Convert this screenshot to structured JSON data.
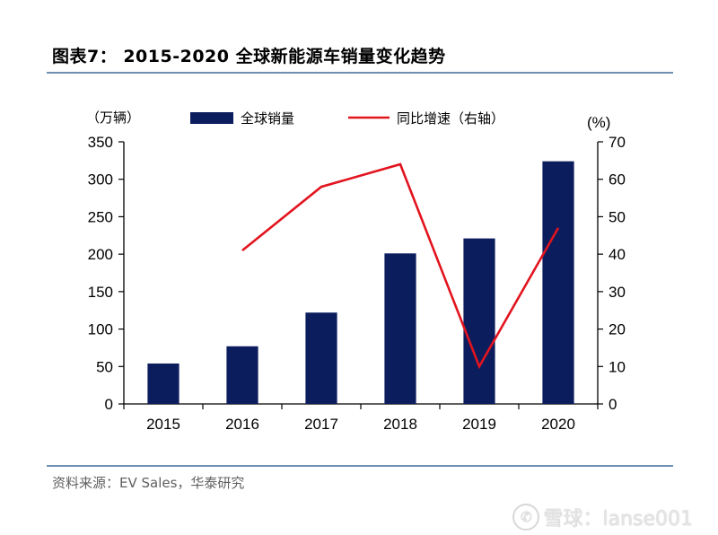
{
  "header": {
    "title": "图表7： 2015-2020 全球新能源车销量变化趋势"
  },
  "footer": {
    "source": "资料来源：EV Sales，华泰研究"
  },
  "watermark": {
    "text": "雪球：lanse001"
  },
  "colors": {
    "bar": "#0c1d5e",
    "line": "#e2141e",
    "rule": "#6f8fb0"
  },
  "chart_data": {
    "type": "bar",
    "title": "2015-2020 全球新能源车销量变化趋势",
    "categories": [
      "2015",
      "2016",
      "2017",
      "2018",
      "2019",
      "2020"
    ],
    "left_axis": {
      "unit_label": "（万辆）",
      "ylim": [
        0,
        350
      ],
      "ticks": [
        "0",
        "50",
        "100",
        "150",
        "200",
        "250",
        "300",
        "350"
      ]
    },
    "right_axis": {
      "unit_label": "(%)",
      "ylim": [
        0,
        70
      ],
      "ticks": [
        "0",
        "10",
        "20",
        "30",
        "40",
        "50",
        "60",
        "70"
      ]
    },
    "series": [
      {
        "name": "全球销量",
        "type": "bar",
        "axis": "left",
        "values": [
          54,
          77,
          122,
          201,
          221,
          324
        ]
      },
      {
        "name": "同比增速（右轴）",
        "type": "line",
        "axis": "right",
        "values": [
          null,
          41,
          58,
          64,
          10,
          47
        ]
      }
    ],
    "legend": [
      "全球销量",
      "同比增速（右轴）"
    ],
    "legend_position": "top"
  }
}
